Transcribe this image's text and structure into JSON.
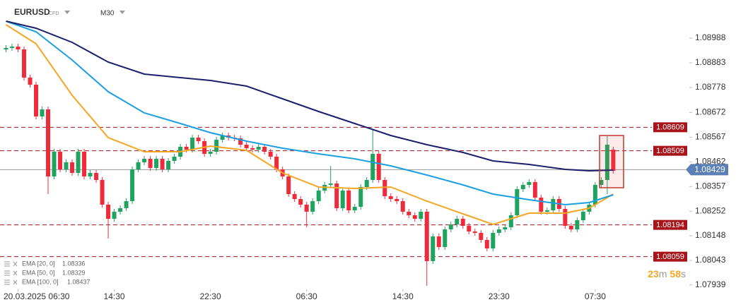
{
  "chart_data": {
    "type": "candlestick",
    "symbol": "EURUSD",
    "instrument_type": "CFD",
    "timeframe": "M30",
    "up_color": "#1fa35f",
    "down_color": "#ee2a3b",
    "xlim": [
      -1,
      106.6
    ],
    "xticks": [
      {
        "value": 2,
        "label": "20.03.2025 06:30"
      },
      {
        "value": 18,
        "label": "14:30"
      },
      {
        "value": 34,
        "label": "22:30"
      },
      {
        "value": 50,
        "label": "06:30"
      },
      {
        "value": 66,
        "label": "14:30"
      },
      {
        "value": 82,
        "label": "23:30"
      },
      {
        "value": 98,
        "label": "07:30"
      }
    ],
    "ylim": [
      1.0792,
      1.0915
    ],
    "yticks": [
      1.08988,
      1.08883,
      1.08778,
      1.08672,
      1.08567,
      1.08462,
      1.08357,
      1.08252,
      1.08148,
      1.08043,
      1.07939
    ],
    "open": [
      1.0894,
      1.08946,
      1.08952,
      1.0894,
      1.0882,
      1.0879,
      1.08655,
      1.08685,
      1.084,
      1.08505,
      1.0843,
      1.0846,
      1.08415,
      1.08505,
      1.084,
      1.08415,
      1.08385,
      1.0828,
      1.0822,
      1.0825,
      1.08265,
      1.08295,
      1.0843,
      1.0846,
      1.08475,
      1.08436,
      1.08475,
      1.0843,
      1.08466,
      1.08484,
      1.08526,
      1.08514,
      1.08565,
      1.0855,
      1.08496,
      1.08505,
      1.08556,
      1.08574,
      1.08565,
      1.08562,
      1.08535,
      1.0852,
      1.08514,
      1.08526,
      1.08505,
      1.08484,
      1.0843,
      1.084,
      1.08325,
      1.08304,
      1.0828,
      1.0825,
      1.08295,
      1.0834,
      1.08364,
      1.0837,
      1.08265,
      1.0834,
      1.08256,
      1.08271,
      1.08355,
      1.08385,
      1.08496,
      1.08385,
      1.08316,
      1.08304,
      1.08295,
      1.0825,
      1.08235,
      1.0822,
      1.0825,
      1.0804,
      1.08145,
      1.081,
      1.08175,
      1.08196,
      1.0822,
      1.0819,
      1.08166,
      1.0816,
      1.0813,
      1.08094,
      1.0816,
      1.08175,
      1.08184,
      1.08235,
      1.08346,
      1.08364,
      1.08376,
      1.0831,
      1.0825,
      1.08256,
      1.08304,
      1.08262,
      1.0819,
      1.08175,
      1.08214,
      1.0825,
      1.0828,
      1.08364,
      1.08385,
      1.08514
    ],
    "high": [
      1.08958,
      1.08964,
      1.08964,
      1.08952,
      1.08832,
      1.08802,
      1.08697,
      1.08697,
      1.08517,
      1.08517,
      1.08472,
      1.08472,
      1.08517,
      1.08517,
      1.08427,
      1.08427,
      1.08397,
      1.08292,
      1.08262,
      1.08277,
      1.08307,
      1.08442,
      1.08472,
      1.08487,
      1.08487,
      1.08487,
      1.08487,
      1.08478,
      1.08496,
      1.08538,
      1.08538,
      1.08577,
      1.08577,
      1.08562,
      1.08517,
      1.08568,
      1.08586,
      1.08586,
      1.08577,
      1.08574,
      1.08547,
      1.08532,
      1.08538,
      1.08538,
      1.08517,
      1.08496,
      1.08442,
      1.08412,
      1.08337,
      1.08316,
      1.08292,
      1.08307,
      1.08352,
      1.08376,
      1.08445,
      1.08382,
      1.08352,
      1.08352,
      1.08283,
      1.08367,
      1.08397,
      1.08601,
      1.08508,
      1.08397,
      1.08328,
      1.08316,
      1.08307,
      1.08262,
      1.08247,
      1.08262,
      1.08262,
      1.08157,
      1.08157,
      1.08187,
      1.08208,
      1.08232,
      1.08232,
      1.08202,
      1.08178,
      1.08172,
      1.08142,
      1.08172,
      1.08187,
      1.08196,
      1.08247,
      1.08358,
      1.08376,
      1.08388,
      1.08388,
      1.08322,
      1.08268,
      1.08316,
      1.08316,
      1.08274,
      1.08202,
      1.08226,
      1.08262,
      1.08292,
      1.08376,
      1.08397,
      1.08571,
      1.08526
    ],
    "low": [
      1.08928,
      1.08934,
      1.08928,
      1.08808,
      1.08778,
      1.08643,
      1.08643,
      1.08325,
      1.08388,
      1.08418,
      1.08418,
      1.08403,
      1.08403,
      1.08388,
      1.08388,
      1.08373,
      1.08268,
      1.08136,
      1.08208,
      1.08238,
      1.08253,
      1.08283,
      1.08418,
      1.08448,
      1.08424,
      1.08424,
      1.08418,
      1.08418,
      1.08454,
      1.08472,
      1.08502,
      1.08502,
      1.08538,
      1.08484,
      1.08484,
      1.08493,
      1.08544,
      1.08553,
      1.0855,
      1.08523,
      1.08508,
      1.08502,
      1.08502,
      1.08493,
      1.08472,
      1.08418,
      1.08388,
      1.08313,
      1.08292,
      1.08268,
      1.08184,
      1.08238,
      1.08283,
      1.08328,
      1.08352,
      1.08253,
      1.08253,
      1.08244,
      1.08244,
      1.08259,
      1.08343,
      1.08373,
      1.08373,
      1.08304,
      1.08292,
      1.08283,
      1.08238,
      1.08223,
      1.08208,
      1.08208,
      1.07935,
      1.08028,
      1.08088,
      1.08088,
      1.08163,
      1.08184,
      1.08178,
      1.08154,
      1.08148,
      1.08118,
      1.08082,
      1.08082,
      1.08148,
      1.08163,
      1.08172,
      1.08223,
      1.08334,
      1.08352,
      1.08298,
      1.08238,
      1.08238,
      1.08244,
      1.0825,
      1.08178,
      1.08163,
      1.08163,
      1.08202,
      1.08238,
      1.08268,
      1.08352,
      1.08325,
      1.08412
    ],
    "close": [
      1.08946,
      1.08952,
      1.0894,
      1.0882,
      1.0879,
      1.08655,
      1.08685,
      1.084,
      1.08505,
      1.0843,
      1.0846,
      1.08415,
      1.08505,
      1.084,
      1.08415,
      1.08385,
      1.0828,
      1.0822,
      1.0825,
      1.08265,
      1.08295,
      1.0843,
      1.0846,
      1.08475,
      1.08436,
      1.08475,
      1.0843,
      1.08466,
      1.08484,
      1.08526,
      1.08514,
      1.08565,
      1.0855,
      1.08496,
      1.08505,
      1.08556,
      1.08574,
      1.08565,
      1.08562,
      1.08535,
      1.0852,
      1.08514,
      1.08526,
      1.08505,
      1.08484,
      1.0843,
      1.084,
      1.08325,
      1.08304,
      1.0828,
      1.0825,
      1.08295,
      1.0834,
      1.08364,
      1.0837,
      1.08265,
      1.0834,
      1.08256,
      1.08271,
      1.08355,
      1.08385,
      1.08496,
      1.08385,
      1.08316,
      1.08304,
      1.08295,
      1.0825,
      1.08235,
      1.0822,
      1.0825,
      1.0804,
      1.08145,
      1.081,
      1.08175,
      1.08196,
      1.0822,
      1.0819,
      1.08166,
      1.0816,
      1.0813,
      1.08094,
      1.0816,
      1.08175,
      1.08184,
      1.08235,
      1.08346,
      1.08364,
      1.08376,
      1.0831,
      1.0825,
      1.08256,
      1.08304,
      1.08262,
      1.0819,
      1.08175,
      1.08214,
      1.0825,
      1.0828,
      1.08364,
      1.08385,
      1.08535,
      1.08424
    ],
    "emas": [
      {
        "name": "EMA [20, 0]",
        "legend_value": 1.08336,
        "color": "#f5a623",
        "x": [
          0,
          5,
          11,
          17,
          23,
          29,
          34,
          40,
          46,
          52,
          58,
          64,
          70,
          76,
          81,
          87,
          93,
          97,
          101
        ],
        "values": [
          1.09045,
          1.08964,
          1.08745,
          1.08565,
          1.08505,
          1.08505,
          1.08529,
          1.08511,
          1.08415,
          1.08355,
          1.08349,
          1.08355,
          1.08295,
          1.08241,
          1.08196,
          1.08244,
          1.08244,
          1.08265,
          1.08325
        ]
      },
      {
        "name": "EMA [50, 0]",
        "legend_value": 1.08329,
        "color": "#1a9fe0",
        "x": [
          0,
          5,
          11,
          17,
          23,
          29,
          34,
          40,
          46,
          52,
          58,
          64,
          70,
          76,
          81,
          87,
          93,
          97,
          101
        ],
        "values": [
          1.0906,
          1.09015,
          1.08895,
          1.0876,
          1.0867,
          1.08625,
          1.08586,
          1.0855,
          1.0852,
          1.08496,
          1.08475,
          1.08445,
          1.08406,
          1.08364,
          1.08325,
          1.08301,
          1.0828,
          1.08289,
          1.08322
        ]
      },
      {
        "name": "EMA [100, 0]",
        "legend_value": 1.08437,
        "color": "#1c1f6b",
        "x": [
          0,
          5,
          11,
          17,
          23,
          29,
          34,
          40,
          46,
          52,
          58,
          64,
          70,
          76,
          81,
          87,
          93,
          97,
          101
        ],
        "values": [
          1.0906,
          1.0903,
          1.0897,
          1.08886,
          1.08835,
          1.0882,
          1.08808,
          1.08784,
          1.0873,
          1.08676,
          1.08625,
          1.08574,
          1.08535,
          1.08502,
          1.08466,
          1.08451,
          1.0843,
          1.08424,
          1.08427
        ]
      }
    ],
    "levels": [
      1.08609,
      1.08509,
      1.08194,
      1.08059
    ],
    "level_color": "#a8141a",
    "last_price": 1.08429,
    "countdown": {
      "minutes": 23,
      "minutes_unit": "m",
      "seconds": 58,
      "seconds_unit": "s"
    }
  }
}
